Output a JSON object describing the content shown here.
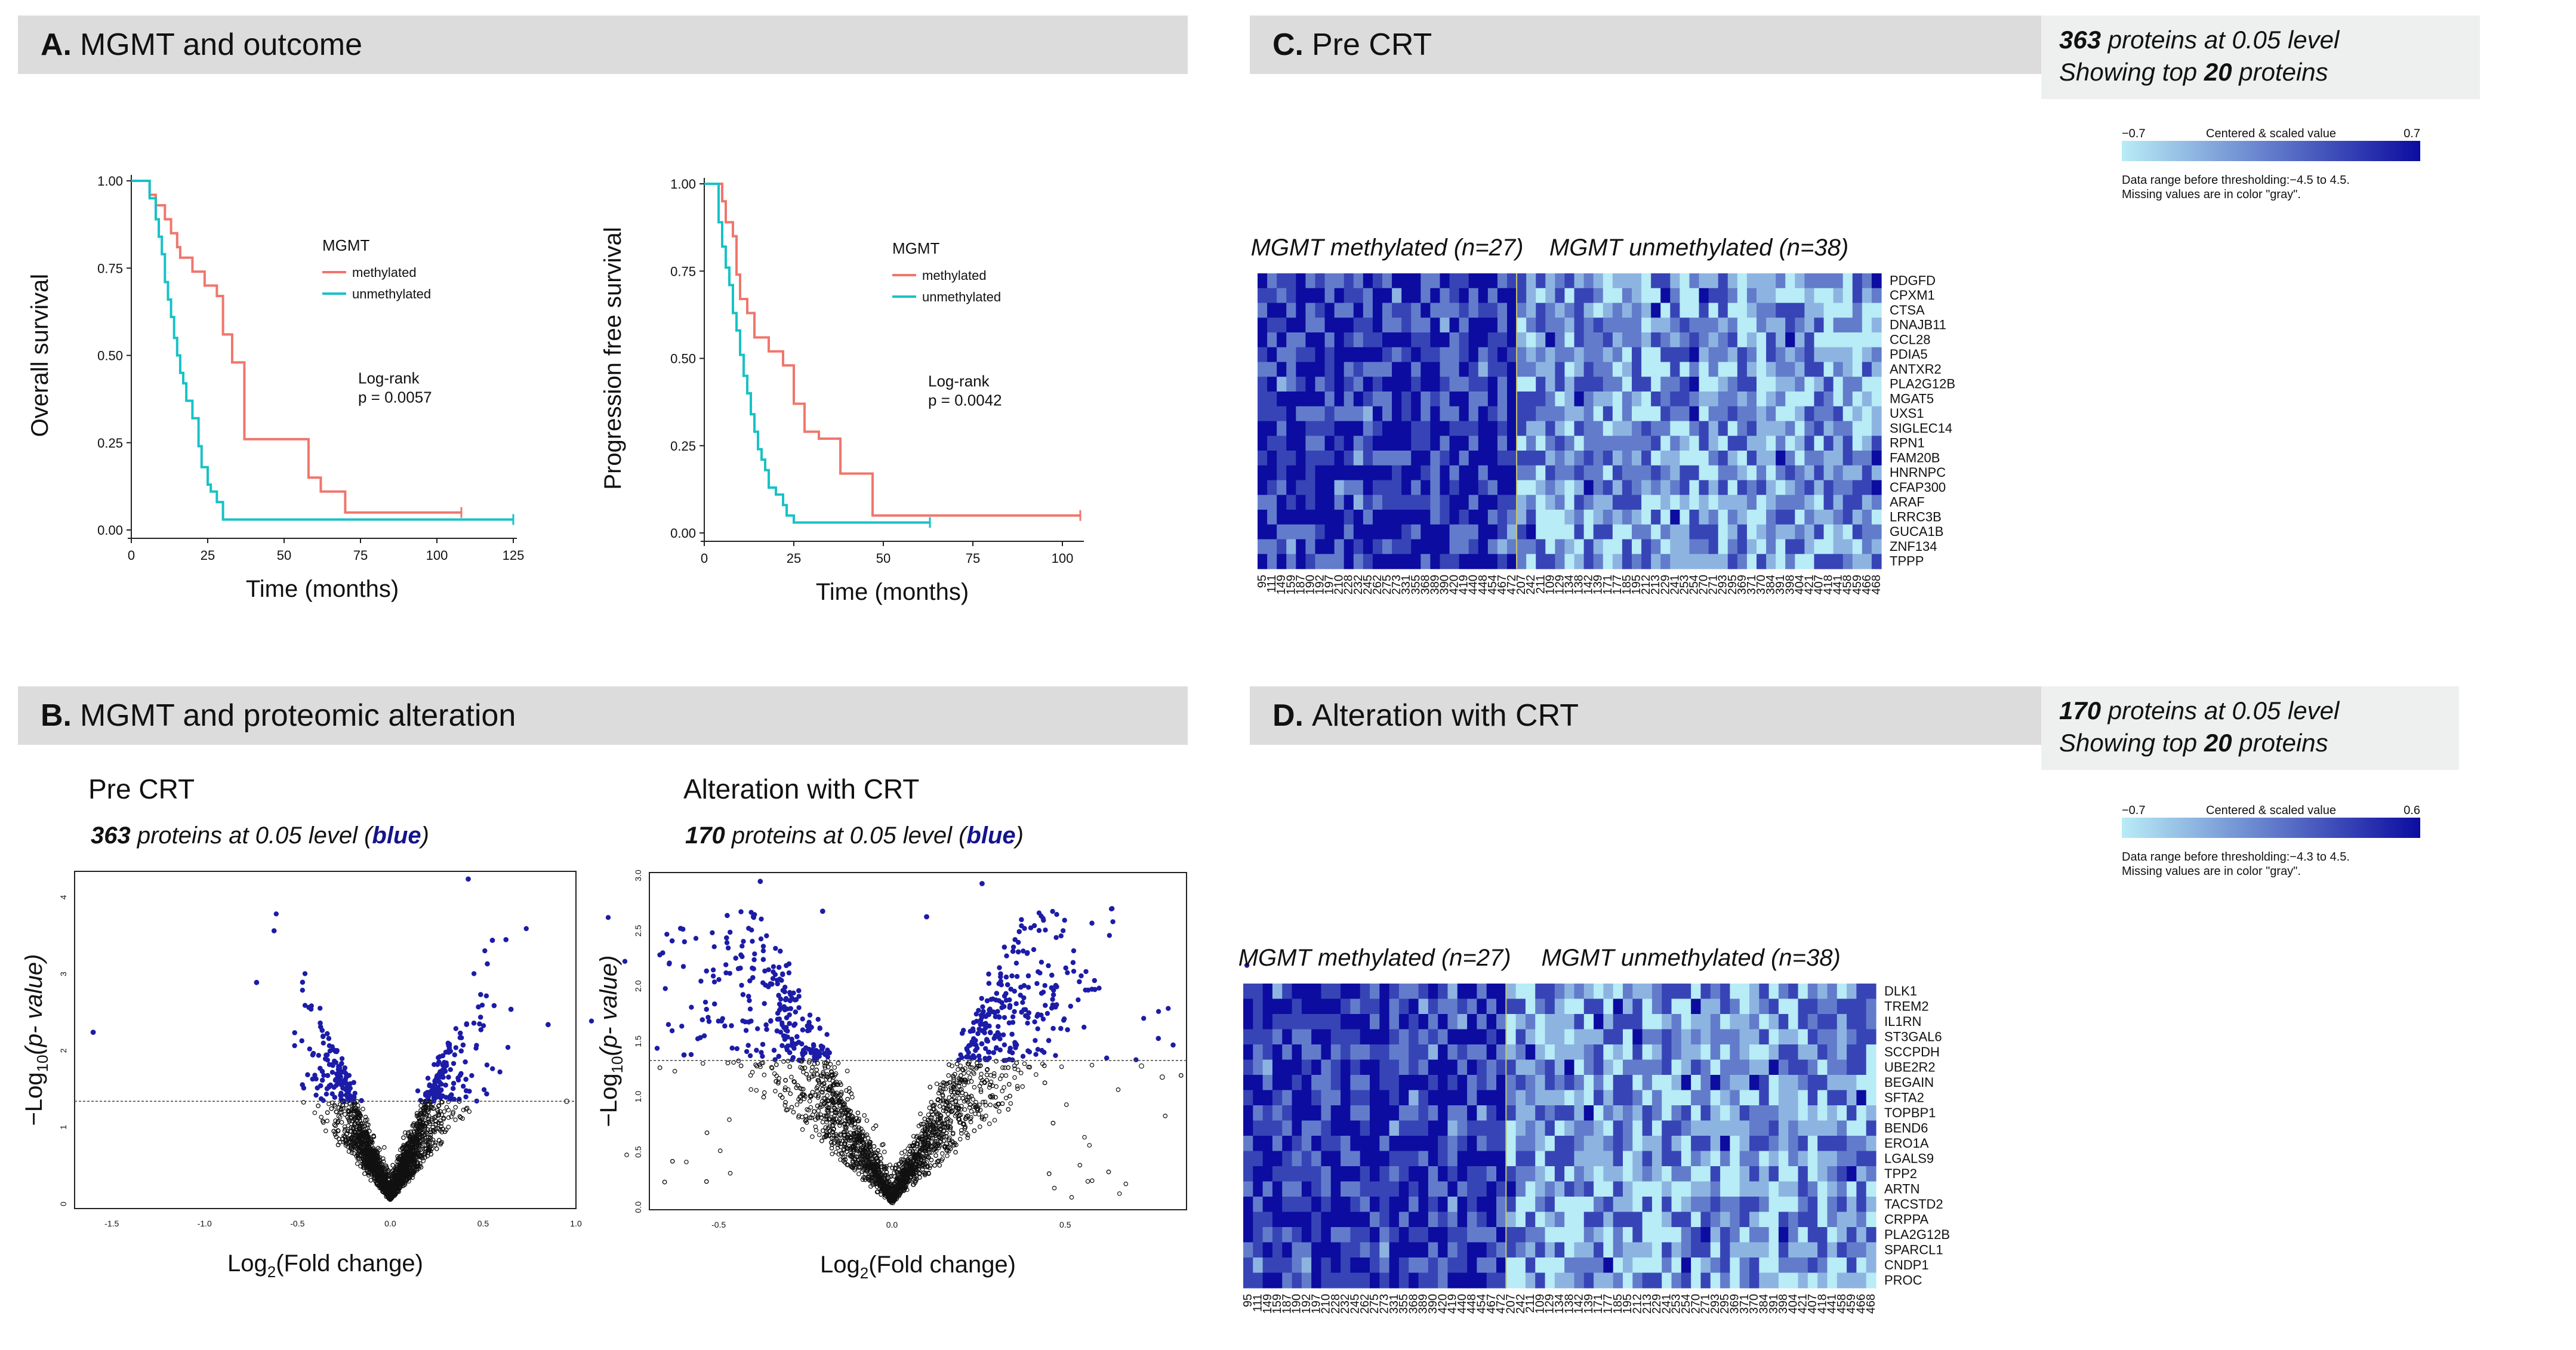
{
  "panels": {
    "A": {
      "letter": "A.",
      "title": "MGMT and outcome"
    },
    "B": {
      "letter": "B.",
      "title": "MGMT and proteomic alteration"
    },
    "C": {
      "letter": "C.",
      "title": "Pre CRT",
      "note_count": "363",
      "note_line1_rest": " proteins at 0.05 level",
      "note_line2_pre": "Showing top ",
      "note_top": "20",
      "note_line2_post": " proteins"
    },
    "D": {
      "letter": "D.",
      "title": "Alteration with  CRT",
      "note_count": "170",
      "note_line1_rest": " proteins at 0.05 level",
      "note_line2_pre": "Showing top ",
      "note_top": "20",
      "note_line2_post": " proteins"
    }
  },
  "colors": {
    "methylated": "#f0766c",
    "unmethylated": "#17c2c6",
    "sig": "#1c1ca8",
    "heat_low": "#b8ecf6",
    "heat_high": "#0c0ca0"
  },
  "chart_data": [
    {
      "id": "os",
      "type": "line",
      "title": "",
      "xlabel": "Time (months)",
      "ylabel": "Overall survival",
      "xlim": [
        0,
        125
      ],
      "ylim": [
        0,
        1
      ],
      "xticks": [
        "0",
        "25",
        "50",
        "75",
        "100",
        "125"
      ],
      "yticks": [
        "0.00",
        "0.25",
        "0.50",
        "0.75",
        "1.00"
      ],
      "legend_title": "MGMT",
      "legend": [
        "methylated",
        "unmethylated"
      ],
      "annotation": [
        "Log-rank",
        "p = 0.0057"
      ],
      "series": [
        {
          "name": "methylated",
          "x": [
            0,
            5,
            6,
            8,
            11,
            13,
            15,
            16,
            20,
            24,
            28,
            30,
            33,
            37,
            56,
            58,
            62,
            70,
            108
          ],
          "y": [
            1.0,
            1.0,
            0.96,
            0.93,
            0.89,
            0.85,
            0.81,
            0.78,
            0.74,
            0.7,
            0.67,
            0.56,
            0.48,
            0.26,
            0.26,
            0.15,
            0.11,
            0.05,
            0.05
          ]
        },
        {
          "name": "unmethylated",
          "x": [
            0,
            5,
            6,
            8,
            9,
            10,
            11,
            12,
            13,
            14,
            15,
            16,
            17,
            18,
            20,
            22,
            23,
            25,
            26,
            28,
            30,
            125
          ],
          "y": [
            1.0,
            1.0,
            0.95,
            0.89,
            0.84,
            0.79,
            0.71,
            0.66,
            0.61,
            0.55,
            0.5,
            0.45,
            0.42,
            0.37,
            0.32,
            0.24,
            0.18,
            0.13,
            0.11,
            0.08,
            0.03,
            0.03
          ]
        }
      ]
    },
    {
      "id": "pfs",
      "type": "line",
      "title": "",
      "xlabel": "Time (months)",
      "ylabel": "Progression free survival",
      "xlim": [
        0,
        105
      ],
      "ylim": [
        0,
        1
      ],
      "xticks": [
        "0",
        "25",
        "50",
        "75",
        "100"
      ],
      "yticks": [
        "0.00",
        "0.25",
        "0.50",
        "0.75",
        "1.00"
      ],
      "legend_title": "MGMT",
      "legend": [
        "methylated",
        "unmethylated"
      ],
      "annotation": [
        "Log-rank",
        "p = 0.0042"
      ],
      "series": [
        {
          "name": "methylated",
          "x": [
            0,
            4,
            5,
            6,
            8,
            9,
            10,
            12,
            14,
            18,
            22,
            25,
            28,
            32,
            36,
            38,
            47,
            105
          ],
          "y": [
            1.0,
            1.0,
            0.95,
            0.89,
            0.85,
            0.74,
            0.67,
            0.63,
            0.56,
            0.52,
            0.48,
            0.37,
            0.29,
            0.27,
            0.27,
            0.17,
            0.05,
            0.05
          ]
        },
        {
          "name": "unmethylated",
          "x": [
            0,
            3,
            4,
            5,
            6,
            7,
            8,
            9,
            10,
            11,
            12,
            13,
            14,
            15,
            16,
            17,
            18,
            20,
            22,
            23,
            25,
            63
          ],
          "y": [
            1.0,
            1.0,
            0.89,
            0.82,
            0.76,
            0.71,
            0.63,
            0.58,
            0.51,
            0.45,
            0.4,
            0.34,
            0.29,
            0.24,
            0.21,
            0.18,
            0.13,
            0.11,
            0.08,
            0.05,
            0.03,
            0.03
          ]
        }
      ]
    },
    {
      "id": "volcano_pre",
      "type": "scatter",
      "title": "Pre CRT",
      "subtitle_count": "363",
      "subtitle_rest": " proteins at 0.05 level (",
      "subtitle_blue": "blue",
      "subtitle_close": ")",
      "xlabel_pre": "Log",
      "xlabel_sub": "2",
      "xlabel_post": "(Fold change)",
      "ylabel_pre": "−Log",
      "ylabel_sub": "10",
      "ylabel_post": "(p- value)",
      "xlim": [
        -1.7,
        1.0
      ],
      "ylim": [
        -0.1,
        4.3
      ],
      "threshold": 1.3,
      "xticks": [
        "-1.5",
        "-1.0",
        "-0.5",
        "0.0",
        "0.5",
        "1.0"
      ],
      "yticks": [
        "0",
        "1",
        "2",
        "3",
        "4"
      ],
      "n_points": 3000,
      "spread": 0.16,
      "outliers": [
        [
          -1.6,
          2.2
        ],
        [
          -0.72,
          2.85
        ],
        [
          0.42,
          4.2
        ],
        [
          0.55,
          3.4
        ],
        [
          0.65,
          2.5
        ],
        [
          0.85,
          2.3
        ],
        [
          0.95,
          1.3
        ]
      ]
    },
    {
      "id": "volcano_alt",
      "type": "scatter",
      "title": "Alteration with CRT",
      "subtitle_count": "170",
      "subtitle_rest": " proteins at 0.05 level (",
      "subtitle_blue": "blue",
      "subtitle_close": ")",
      "xlabel_pre": "Log",
      "xlabel_sub": "2",
      "xlabel_post": "(Fold change)",
      "ylabel_pre": "−Log",
      "ylabel_sub": "10",
      "ylabel_post": "(p- value)",
      "xlim": [
        -0.7,
        0.85
      ],
      "ylim": [
        -0.05,
        3.0
      ],
      "threshold": 1.3,
      "xticks": [
        "-0.5",
        "0.0",
        "0.5"
      ],
      "yticks": [
        "0.0",
        "0.5",
        "1.0",
        "1.5",
        "2.0",
        "2.5",
        "3.0"
      ],
      "n_points": 3000,
      "spread": 0.22,
      "outliers": [
        [
          -0.38,
          2.92
        ],
        [
          -0.2,
          2.65
        ],
        [
          0.1,
          2.6
        ],
        [
          0.26,
          2.9
        ],
        [
          -0.6,
          1.35
        ],
        [
          0.72,
          1.25
        ],
        [
          0.78,
          1.15
        ]
      ]
    },
    {
      "id": "heat_pre",
      "type": "heatmap",
      "legend_min": "−0.7",
      "legend_title": "Centered & scaled value",
      "legend_max": "0.7",
      "range_note": "Data range before thresholding:−4.5 to 4.5.",
      "missing_note": "Missing values are in color \"gray\".",
      "group_labels": [
        "MGMT methylated (n=27)",
        "MGMT unmethylated (n=38)"
      ],
      "group_sizes": [
        27,
        38
      ],
      "rows": [
        "PDGFD",
        "CPXM1",
        "CTSA",
        "DNAJB11",
        "CCL28",
        "PDIA5",
        "ANTXR2",
        "PLA2G12B",
        "MGAT5",
        "UXS1",
        "SIGLEC14",
        "RPN1",
        "FAM20B",
        "HNRNPC",
        "CFAP300",
        "ARAF",
        "LRRC3B",
        "GUCA1B",
        "ZNF134",
        "TPPP"
      ],
      "columns": [
        "95",
        "111",
        "149",
        "159",
        "187",
        "190",
        "192",
        "197",
        "210",
        "228",
        "232",
        "245",
        "262",
        "275",
        "273",
        "331",
        "355",
        "368",
        "389",
        "390",
        "420",
        "419",
        "440",
        "448",
        "454",
        "467",
        "472",
        "207",
        "242",
        "211",
        "109",
        "129",
        "134",
        "138",
        "142",
        "139",
        "171",
        "177",
        "185",
        "195",
        "212",
        "213",
        "229",
        "241",
        "253",
        "254",
        "270",
        "271",
        "293",
        "295",
        "369",
        "371",
        "370",
        "384",
        "391",
        "398",
        "404",
        "421",
        "407",
        "418",
        "441",
        "458",
        "459",
        "466",
        "468"
      ],
      "seed": 7
    },
    {
      "id": "heat_alt",
      "type": "heatmap",
      "legend_min": "−0.7",
      "legend_title": "Centered & scaled value",
      "legend_max": "0.6",
      "range_note": "Data range before thresholding:−4.3 to 4.5.",
      "missing_note": "Missing values are in color \"gray\".",
      "group_labels": [
        "MGMT methylated (n=27)",
        "MGMT unmethylated (n=38)"
      ],
      "group_sizes": [
        27,
        38
      ],
      "rows": [
        "DLK1",
        "TREM2",
        "IL1RN",
        "ST3GAL6",
        "SCCPDH",
        "UBE2R2",
        "BEGAIN",
        "SFTA2",
        "TOPBP1",
        "BEND6",
        "ERO1A",
        "LGALS9",
        "TPP2",
        "ARTN",
        "TACSTD2",
        "CRPPA",
        "PLA2G12B",
        "SPARCL1",
        "CNDP1",
        "PROC"
      ],
      "columns": [
        "95",
        "111",
        "149",
        "159",
        "187",
        "190",
        "192",
        "197",
        "210",
        "228",
        "232",
        "245",
        "262",
        "275",
        "273",
        "331",
        "355",
        "368",
        "389",
        "390",
        "420",
        "419",
        "440",
        "448",
        "454",
        "467",
        "472",
        "207",
        "242",
        "211",
        "109",
        "129",
        "134",
        "138",
        "142",
        "139",
        "171",
        "177",
        "185",
        "195",
        "212",
        "213",
        "229",
        "241",
        "253",
        "254",
        "270",
        "271",
        "293",
        "295",
        "369",
        "371",
        "370",
        "384",
        "391",
        "398",
        "404",
        "421",
        "407",
        "418",
        "441",
        "458",
        "459",
        "466",
        "468"
      ],
      "seed": 23
    }
  ]
}
